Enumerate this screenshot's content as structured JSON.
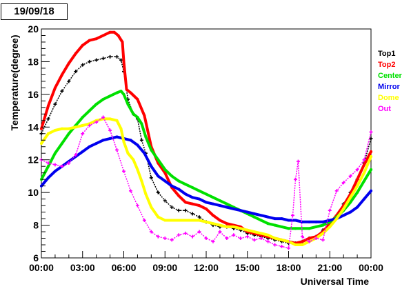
{
  "date_label": "19/09/18",
  "chart_data": {
    "type": "scatter",
    "title": "",
    "xlabel": "Universal Time",
    "ylabel": "Temperature(degree)",
    "xlim": [
      0,
      24
    ],
    "ylim": [
      6,
      20
    ],
    "x_ticks": [
      0,
      3,
      6,
      9,
      12,
      15,
      18,
      21,
      24
    ],
    "x_tick_labels": [
      "00:00",
      "03:00",
      "06:00",
      "09:00",
      "12:00",
      "15:00",
      "18:00",
      "21:00",
      "00:00"
    ],
    "y_ticks": [
      6,
      8,
      10,
      12,
      14,
      16,
      18,
      20
    ],
    "y_tick_labels": [
      "6",
      "8",
      "10",
      "12",
      "14",
      "16",
      "18",
      "20"
    ],
    "legend_position": "right",
    "series": [
      {
        "name": "Top1",
        "color": "#000000",
        "marker": "cross",
        "x": [
          0,
          0.5,
          1,
          1.5,
          2,
          2.5,
          3,
          3.5,
          4,
          4.5,
          5,
          5.5,
          5.8,
          6,
          6.3,
          6.7,
          7,
          7.3,
          7.6,
          8,
          8.5,
          9,
          9.5,
          10,
          10.5,
          11,
          11.5,
          12,
          12.5,
          13,
          13.5,
          14,
          14.5,
          15,
          15.5,
          16,
          16.5,
          17,
          17.5,
          18,
          18.5,
          19,
          19.5,
          20,
          20.5,
          21,
          21.5,
          22,
          22.5,
          23,
          23.5,
          24
        ],
        "y": [
          13.6,
          14.5,
          15.4,
          16.2,
          16.8,
          17.4,
          17.8,
          18.0,
          18.1,
          18.2,
          18.3,
          18.3,
          18.1,
          17.4,
          15.7,
          14.8,
          14.5,
          13.2,
          12.4,
          10.9,
          10.0,
          9.5,
          9.1,
          8.9,
          8.9,
          8.7,
          8.5,
          8.2,
          8.0,
          7.9,
          7.9,
          7.8,
          7.7,
          7.5,
          7.4,
          7.3,
          7.2,
          7.1,
          7.0,
          6.9,
          6.9,
          7.0,
          7.2,
          7.3,
          7.7,
          8.1,
          8.6,
          9.3,
          10.0,
          10.8,
          11.8,
          13.3
        ]
      },
      {
        "name": "Top2",
        "color": "#ff0000",
        "marker": "line",
        "x": [
          0,
          0.5,
          1,
          1.5,
          2,
          2.5,
          3,
          3.5,
          4,
          4.5,
          5,
          5.3,
          5.6,
          5.9,
          6,
          6.2,
          6.5,
          7,
          7.5,
          8,
          8.5,
          9,
          9.5,
          10,
          10.5,
          11,
          11.5,
          12,
          12.5,
          13,
          13.5,
          14,
          14.5,
          15,
          15.5,
          16,
          16.5,
          17,
          17.5,
          18,
          18.5,
          19,
          19.5,
          20,
          20.5,
          21,
          21.5,
          22,
          22.5,
          23,
          23.5,
          24
        ],
        "y": [
          13.9,
          15.3,
          16.4,
          17.2,
          17.9,
          18.5,
          19.0,
          19.3,
          19.4,
          19.6,
          19.8,
          19.8,
          19.6,
          19.2,
          18.0,
          16.3,
          16.1,
          15.7,
          14.7,
          12.8,
          11.8,
          11.2,
          10.3,
          9.8,
          9.4,
          9.3,
          9.2,
          9.0,
          8.6,
          8.3,
          8.1,
          8.0,
          7.9,
          7.6,
          7.5,
          7.4,
          7.3,
          7.2,
          7.1,
          7.0,
          6.9,
          7.0,
          7.2,
          7.3,
          7.6,
          8.1,
          8.6,
          9.2,
          9.9,
          10.8,
          11.7,
          12.5
        ]
      },
      {
        "name": "Center",
        "color": "#00e000",
        "marker": "line",
        "x": [
          0,
          0.5,
          1,
          1.5,
          2,
          2.5,
          3,
          3.5,
          4,
          4.5,
          5,
          5.5,
          5.8,
          6,
          6.3,
          6.7,
          7,
          7.3,
          7.6,
          8,
          8.5,
          9,
          9.5,
          10,
          10.5,
          11,
          11.5,
          12,
          12.5,
          13,
          13.5,
          14,
          14.5,
          15,
          15.5,
          16,
          16.5,
          17,
          17.5,
          18,
          18.5,
          19,
          19.5,
          20,
          20.5,
          21,
          21.5,
          22,
          22.5,
          23,
          23.5,
          24
        ],
        "y": [
          10.8,
          11.6,
          12.4,
          13.0,
          13.6,
          14.1,
          14.6,
          15.0,
          15.4,
          15.7,
          15.9,
          16.1,
          16.2,
          16.0,
          15.4,
          14.8,
          14.6,
          14.2,
          13.4,
          12.6,
          12.0,
          11.4,
          11.0,
          10.7,
          10.5,
          10.3,
          10.1,
          9.9,
          9.7,
          9.5,
          9.3,
          9.1,
          8.9,
          8.7,
          8.5,
          8.3,
          8.1,
          8.0,
          7.9,
          7.8,
          7.8,
          7.8,
          7.8,
          7.9,
          8.0,
          8.2,
          8.5,
          8.9,
          9.4,
          10.0,
          10.7,
          11.4
        ]
      },
      {
        "name": "Mirror",
        "color": "#0000ee",
        "marker": "line",
        "x": [
          0,
          0.5,
          1,
          1.5,
          2,
          2.5,
          3,
          3.5,
          4,
          4.5,
          5,
          5.5,
          6,
          6.5,
          7,
          7.5,
          8,
          8.5,
          9,
          9.5,
          10,
          10.5,
          11,
          11.5,
          12,
          12.5,
          13,
          13.5,
          14,
          14.5,
          15,
          15.5,
          16,
          16.5,
          17,
          17.5,
          18,
          18.5,
          19,
          19.5,
          20,
          20.5,
          21,
          21.5,
          22,
          22.5,
          23,
          23.5,
          24
        ],
        "y": [
          10.4,
          10.9,
          11.3,
          11.6,
          11.9,
          12.2,
          12.5,
          12.8,
          13.0,
          13.2,
          13.3,
          13.4,
          13.3,
          13.2,
          12.9,
          12.4,
          11.6,
          11.0,
          10.7,
          10.4,
          10.2,
          9.9,
          9.7,
          9.6,
          9.4,
          9.3,
          9.2,
          9.1,
          9.0,
          8.9,
          8.8,
          8.7,
          8.6,
          8.5,
          8.4,
          8.4,
          8.3,
          8.3,
          8.2,
          8.2,
          8.2,
          8.2,
          8.3,
          8.4,
          8.6,
          8.8,
          9.1,
          9.6,
          10.1
        ]
      },
      {
        "name": "Dome",
        "color": "#ffff00",
        "marker": "line",
        "x": [
          0,
          0.5,
          1,
          1.5,
          2,
          2.5,
          3,
          3.5,
          4,
          4.5,
          5,
          5.5,
          5.8,
          6,
          6.3,
          6.7,
          7,
          7.3,
          7.6,
          8,
          8.5,
          9,
          9.5,
          10,
          10.5,
          11,
          11.5,
          12,
          12.5,
          13,
          13.5,
          14,
          14.5,
          15,
          15.5,
          16,
          16.5,
          17,
          17.5,
          18,
          18.5,
          19,
          19.5,
          20,
          20.5,
          21,
          21.5,
          22,
          22.5,
          23,
          23.5,
          24
        ],
        "y": [
          13.0,
          13.6,
          13.8,
          13.9,
          13.9,
          14.0,
          14.1,
          14.2,
          14.4,
          14.5,
          14.5,
          14.4,
          13.9,
          13.1,
          12.4,
          12.0,
          11.4,
          10.7,
          9.9,
          9.1,
          8.5,
          8.3,
          8.3,
          8.3,
          8.3,
          8.3,
          8.3,
          8.2,
          8.1,
          8.0,
          7.9,
          7.9,
          7.8,
          7.7,
          7.6,
          7.5,
          7.4,
          7.2,
          7.1,
          7.0,
          6.8,
          6.8,
          7.0,
          7.2,
          7.5,
          7.9,
          8.4,
          9.0,
          9.7,
          10.4,
          11.2,
          12.2
        ]
      },
      {
        "name": "Out",
        "color": "#ff00ff",
        "marker": "cross",
        "x": [
          0,
          0.5,
          1,
          1.5,
          2,
          2.5,
          3,
          3.5,
          4,
          4.5,
          5,
          5.5,
          6,
          6.5,
          7,
          7.5,
          8,
          8.5,
          9,
          9.5,
          10,
          10.5,
          11,
          11.5,
          12,
          12.5,
          13,
          13.5,
          14,
          14.5,
          15,
          15.5,
          16,
          16.5,
          17,
          17.5,
          18,
          18.3,
          18.5,
          18.7,
          19,
          19.5,
          20,
          20.5,
          21,
          21.5,
          22,
          22.5,
          23,
          23.5,
          24
        ],
        "y": [
          12.0,
          11.8,
          11.7,
          11.6,
          11.8,
          12.3,
          13.6,
          14.1,
          14.3,
          14.6,
          13.8,
          12.6,
          11.3,
          10.1,
          9.2,
          8.3,
          7.6,
          7.3,
          7.2,
          7.1,
          7.4,
          7.5,
          7.3,
          7.6,
          7.2,
          7.0,
          7.6,
          7.2,
          7.4,
          7.2,
          7.3,
          7.1,
          7.2,
          7.0,
          6.8,
          6.7,
          6.6,
          8.6,
          10.8,
          11.9,
          7.3,
          7.0,
          7.2,
          7.1,
          8.9,
          10.1,
          10.6,
          11.0,
          11.4,
          12.0,
          13.7
        ]
      }
    ]
  }
}
